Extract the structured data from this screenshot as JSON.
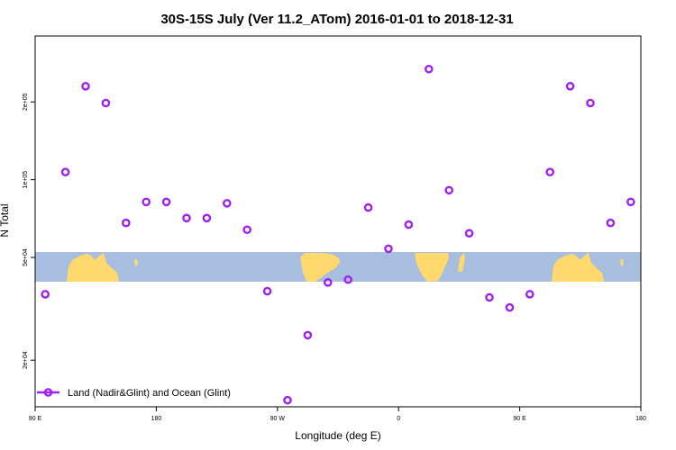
{
  "chart_data": {
    "type": "scatter",
    "title": "30S-15S July (Ver 11.2_ATom)   2016-01-01 to 2018-12-31",
    "xlabel": "Longitude (deg E)",
    "ylabel": "N Total",
    "x_scale": "linear",
    "y_scale": "log",
    "xlim": [
      90,
      540
    ],
    "ylim": [
      13200,
      360000
    ],
    "x_ticks": [
      {
        "value": 90,
        "label": "90 E"
      },
      {
        "value": 180,
        "label": "180"
      },
      {
        "value": 270,
        "label": "90 W"
      },
      {
        "value": 360,
        "label": "0"
      },
      {
        "value": 450,
        "label": "90 E"
      },
      {
        "value": 540,
        "label": "180"
      }
    ],
    "y_ticks": [
      {
        "value": 20000,
        "label": "2e+04"
      },
      {
        "value": 50000,
        "label": "5e+04"
      },
      {
        "value": 100000,
        "label": "1e+05"
      },
      {
        "value": 200000,
        "label": "2e+05"
      }
    ],
    "grid": false,
    "legend_position": "bottom-left",
    "series": [
      {
        "name": "Land (Nadir&Glint) and Ocean (Glint)",
        "color": "#a020f0",
        "marker": "open-circle",
        "x": [
          97.5,
          112.5,
          127.5,
          142.5,
          157.5,
          172.5,
          187.5,
          202.5,
          217.5,
          232.5,
          247.5,
          262.5,
          277.5,
          292.5,
          307.5,
          322.5,
          337.5,
          352.5,
          367.5,
          382.5,
          397.5,
          412.5,
          427.5,
          442.5,
          457.5,
          472.5,
          487.5,
          502.5,
          517.5,
          532.5
        ],
        "y": [
          36000,
          107000,
          230000,
          198000,
          68000,
          82000,
          82000,
          71000,
          71000,
          81000,
          64000,
          37000,
          14000,
          25000,
          40000,
          41000,
          78000,
          54000,
          67000,
          268000,
          91000,
          62000,
          35000,
          32000,
          36000,
          107000,
          230000,
          198000,
          68000,
          82000
        ]
      }
    ]
  },
  "map_colors": {
    "ocean": "#a8bedf",
    "land": "#ffd86e"
  },
  "legend": {
    "label": "Land (Nadir&Glint) and Ocean (Glint)"
  }
}
